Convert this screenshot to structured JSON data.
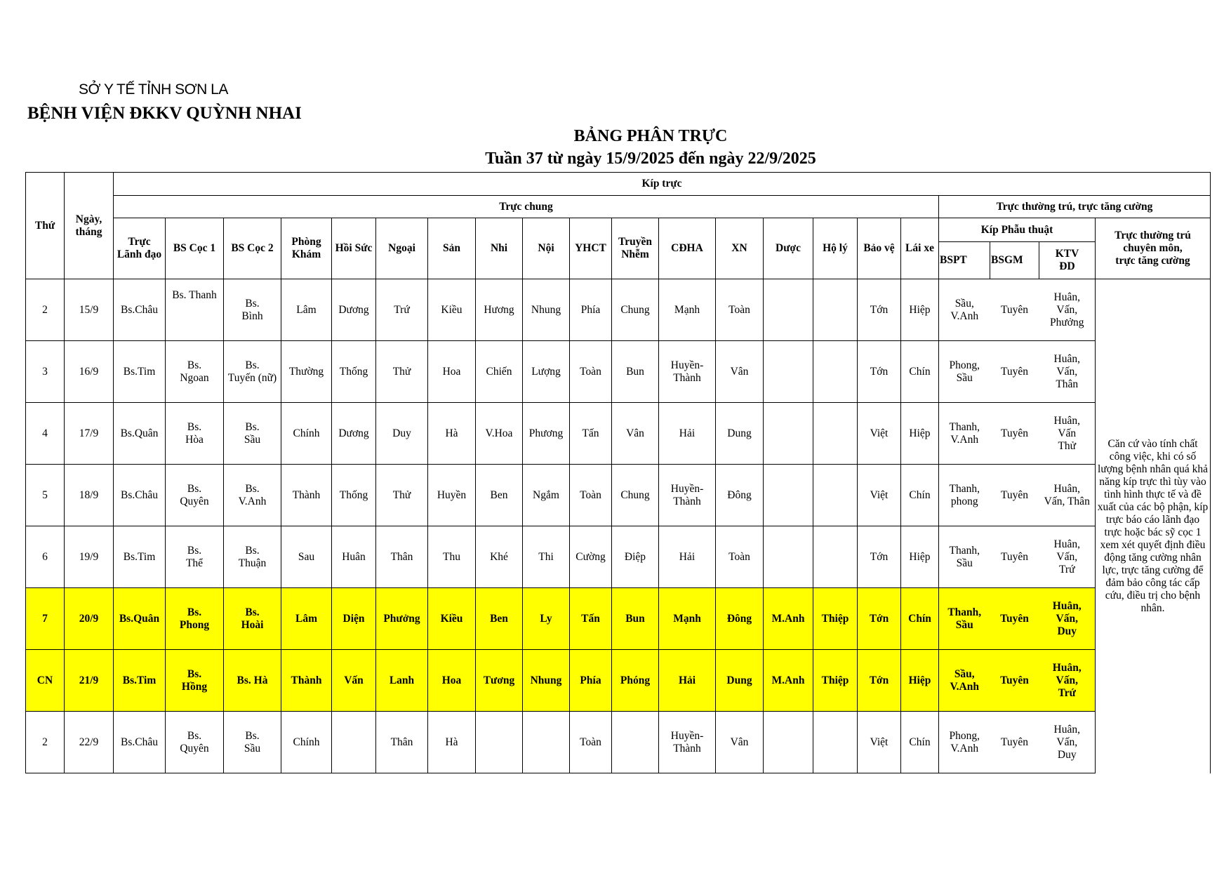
{
  "header": {
    "organization": "SỞ Y TẾ TỈNH SƠN LA",
    "hospital": "BỆNH VIỆN ĐKKV QUỲNH NHAI",
    "title": "BẢNG PHÂN TRỰC",
    "subtitle": "Tuần 37 từ ngày 15/9/2025 đến ngày 22/9/2025"
  },
  "colors": {
    "weekend_highlight": "#ffff00"
  },
  "table": {
    "col_thu": "Thứ",
    "col_ngay": "Ngày,\ntháng",
    "group_kip_truc": "Kíp trực",
    "group_truc_chung": "Trực chung",
    "group_truc_thuong_tru": "Trực thường trú, trực tăng cường",
    "group_kip_phau_thuat": "Kíp Phẫu thuật",
    "col_note_header": "Trực thường trú\nchuyên môn,\ntrực tăng cường",
    "truc_chung_columns": [
      "Trực\nLãnh đạo",
      "BS Cọc 1",
      "BS Cọc 2",
      "Phòng\nKhám",
      "Hồi Sức",
      "Ngoại",
      "Sản",
      "Nhi",
      "Nội",
      "YHCT",
      "Truyền\nNhễm",
      "CĐHA",
      "XN",
      "Dược",
      "Hộ lý",
      "Bảo vệ",
      "Lái xe"
    ],
    "kip_phau_thuat_columns": [
      "BSPT",
      "BSGM",
      "KTV\nĐD"
    ],
    "note": "Căn cứ vào tính chất công việc, khi có số lượng bệnh nhân quá khả năng kíp trực thì tùy vào tình hình thực tế và đề xuất của các bộ phận, kíp trực báo cáo lãnh đạo trực hoặc bác sỹ cọc 1 xem xét quyết định điều động tăng cường nhân lực, trực tăng cường để đảm bảo công tác cấp cứu, điều trị cho bệnh nhân.",
    "rows": [
      {
        "weekend": false,
        "cells": [
          "2",
          "15/9",
          "Bs.Châu",
          "Bs. Thanh",
          "Bs.\nBình",
          "Lâm",
          "Dương",
          "Trứ",
          "Kiều",
          "Hương",
          "Nhung",
          "Phía",
          "Chung",
          "Mạnh",
          "Toàn",
          "",
          "",
          "Tớn",
          "Hiệp",
          "Sầu,\nV.Anh",
          "Tuyên",
          "Huân,\nVấn,\nPhưởng"
        ]
      },
      {
        "weekend": false,
        "cells": [
          "3",
          "16/9",
          "Bs.Tim",
          "Bs.\nNgoan",
          "Bs.\nTuyến (nữ)",
          "Thường",
          "Thống",
          "Thử",
          "Hoa",
          "Chiến",
          "Lượng",
          "Toàn",
          "Bun",
          "Huyền-\nThành",
          "Vân",
          "",
          "",
          "Tớn",
          "Chín",
          "Phong,\nSầu",
          "Tuyên",
          "Huân,\nVấn,\nThân"
        ]
      },
      {
        "weekend": false,
        "cells": [
          "4",
          "17/9",
          "Bs.Quân",
          "Bs.\nHòa",
          "Bs.\nSầu",
          "Chính",
          "Dương",
          "Duy",
          "Hà",
          "V.Hoa",
          "Phương",
          "Tấn",
          "Vân",
          "Hải",
          "Dung",
          "",
          "",
          "Việt",
          "Hiệp",
          "Thanh,\nV.Anh",
          "Tuyên",
          "Huân,\nVấn\nThử"
        ]
      },
      {
        "weekend": false,
        "cells": [
          "5",
          "18/9",
          "Bs.Châu",
          "Bs.\nQuyên",
          "Bs.\nV.Anh",
          "Thành",
          "Thống",
          "Thử",
          "Huyền",
          "Ben",
          "Ngắm",
          "Toàn",
          "Chung",
          "Huyền-\nThành",
          "Đông",
          "",
          "",
          "Việt",
          "Chín",
          "Thanh,\nphong",
          "Tuyên",
          "Huân,\nVấn, Thân"
        ]
      },
      {
        "weekend": false,
        "cells": [
          "6",
          "19/9",
          "Bs.Tim",
          "Bs.\nThể",
          "Bs.\nThuận",
          "Sau",
          "Huân",
          "Thân",
          "Thu",
          "Khé",
          "Thi",
          "Cường",
          "Điệp",
          "Hải",
          "Toàn",
          "",
          "",
          "Tớn",
          "Hiệp",
          "Thanh,\nSầu",
          "Tuyên",
          "Huân,\nVấn,\nTrứ"
        ]
      },
      {
        "weekend": true,
        "cells": [
          "7",
          "20/9",
          "Bs.Quân",
          "Bs.\nPhong",
          "Bs.\nHoài",
          "Lâm",
          "Diện",
          "Phưởng",
          "Kiều",
          "Ben",
          "Ly",
          "Tấn",
          "Bun",
          "Mạnh",
          "Đông",
          "M.Anh",
          "Thiệp",
          "Tớn",
          "Chín",
          "Thanh,\nSầu",
          "Tuyên",
          "Huân,\nVấn,\nDuy"
        ]
      },
      {
        "weekend": true,
        "cells": [
          "CN",
          "21/9",
          "Bs.Tim",
          "Bs.\nHồng",
          "Bs. Hà",
          "Thành",
          "Vấn",
          "Lanh",
          "Hoa",
          "Tương",
          "Nhung",
          "Phía",
          "Phóng",
          "Hải",
          "Dung",
          "M.Anh",
          "Thiệp",
          "Tớn",
          "Hiệp",
          "Sầu,\nV.Anh",
          "Tuyên",
          "Huân,\nVấn,\nTrứ"
        ]
      },
      {
        "weekend": false,
        "cells": [
          "2",
          "22/9",
          "Bs.Châu",
          "Bs.\nQuyên",
          "Bs.\nSầu",
          "Chính",
          "",
          "Thân",
          "Hà",
          "",
          "",
          "Toàn",
          "",
          "Huyền-\nThành",
          "Vân",
          "",
          "",
          "Việt",
          "Chín",
          "Phong,\nV.Anh",
          "Tuyên",
          "Huân,\nVấn,\nDuy"
        ]
      }
    ]
  }
}
